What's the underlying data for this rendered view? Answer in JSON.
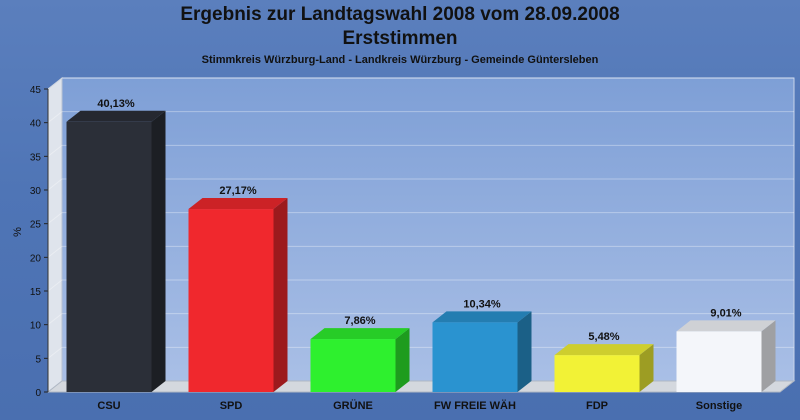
{
  "header": {
    "title": "Ergebnis zur Landtagswahl 2008 vom 28.09.2008",
    "subtitle": "Erststimmen",
    "caption": "Stimmkreis Würzburg-Land - Landkreis Würzburg - Gemeinde Güntersleben"
  },
  "chart_data": {
    "type": "bar",
    "title": "Ergebnis zur Landtagswahl 2008 vom 28.09.2008",
    "subtitle": "Erststimmen",
    "ylabel": "%",
    "xlabel": "",
    "ylim": [
      0,
      45
    ],
    "yticks": [
      0,
      5,
      10,
      15,
      20,
      25,
      30,
      35,
      40,
      45
    ],
    "grid": true,
    "categories": [
      "CSU",
      "SPD",
      "GRÜNE",
      "FW FREIE WÄH",
      "FDP",
      "Sonstige"
    ],
    "values": [
      40.13,
      27.17,
      7.86,
      10.34,
      5.48,
      9.01
    ],
    "data_labels": [
      "40,13%",
      "27,17%",
      "7,86%",
      "10,34%",
      "5,48%",
      "9,01%"
    ],
    "colors": [
      "#2b2f38",
      "#f0282d",
      "#2ef02e",
      "#2a93d0",
      "#f2f236",
      "#f4f6fa"
    ]
  }
}
